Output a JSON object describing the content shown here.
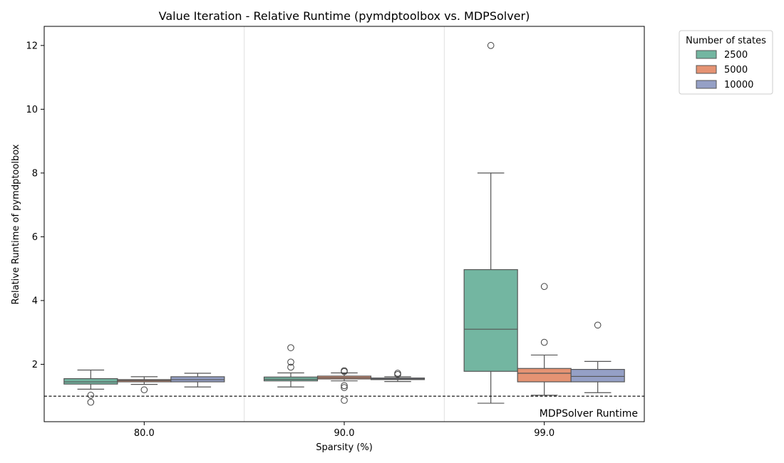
{
  "chart_data": {
    "type": "box",
    "title": "Value Iteration - Relative Runtime (pymdptoolbox vs. MDPSolver)",
    "xlabel": "Sparsity (%)",
    "ylabel": "Relative Runtime of pymdptoolbox",
    "categories": [
      "80.0",
      "90.0",
      "99.0"
    ],
    "ylim": [
      0.2,
      12.6
    ],
    "yticks": [
      "2",
      "4",
      "6",
      "8",
      "10",
      "12"
    ],
    "legend": {
      "title": "Number of states",
      "position": "outside-top-right"
    },
    "reference_line": {
      "y": 1.0,
      "label": "MDPSolver Runtime",
      "style": "dashed"
    },
    "series": [
      {
        "name": "2500",
        "color": "#73b6a1",
        "boxes": [
          {
            "category": "80.0",
            "whisker_low": 1.22,
            "q1": 1.38,
            "median": 1.45,
            "q3": 1.55,
            "whisker_high": 1.82,
            "outliers": [
              1.03,
              0.81
            ]
          },
          {
            "category": "90.0",
            "whisker_low": 1.29,
            "q1": 1.48,
            "median": 1.53,
            "q3": 1.6,
            "whisker_high": 1.73,
            "outliers": [
              2.52,
              2.07,
              1.91
            ]
          },
          {
            "category": "99.0",
            "whisker_low": 0.78,
            "q1": 1.78,
            "median": 3.1,
            "q3": 4.97,
            "whisker_high": 8.0,
            "outliers": [
              12.0
            ]
          }
        ]
      },
      {
        "name": "5000",
        "color": "#e59373",
        "boxes": [
          {
            "category": "80.0",
            "whisker_low": 1.37,
            "q1": 1.45,
            "median": 1.49,
            "q3": 1.52,
            "whisker_high": 1.61,
            "outliers": [
              1.2
            ]
          },
          {
            "category": "90.0",
            "whisker_low": 1.48,
            "q1": 1.54,
            "median": 1.58,
            "q3": 1.63,
            "whisker_high": 1.73,
            "outliers": [
              1.8,
              1.77,
              1.33,
              1.27,
              0.87
            ]
          },
          {
            "category": "99.0",
            "whisker_low": 1.03,
            "q1": 1.45,
            "median": 1.72,
            "q3": 1.87,
            "whisker_high": 2.29,
            "outliers": [
              4.44,
              2.69
            ]
          }
        ]
      },
      {
        "name": "10000",
        "color": "#95a0c6",
        "boxes": [
          {
            "category": "80.0",
            "whisker_low": 1.29,
            "q1": 1.45,
            "median": 1.52,
            "q3": 1.61,
            "whisker_high": 1.72,
            "outliers": []
          },
          {
            "category": "90.0",
            "whisker_low": 1.46,
            "q1": 1.52,
            "median": 1.54,
            "q3": 1.57,
            "whisker_high": 1.61,
            "outliers": [
              1.72,
              1.68
            ]
          },
          {
            "category": "99.0",
            "whisker_low": 1.11,
            "q1": 1.45,
            "median": 1.62,
            "q3": 1.84,
            "whisker_high": 2.09,
            "outliers": [
              3.23
            ]
          }
        ]
      }
    ]
  }
}
